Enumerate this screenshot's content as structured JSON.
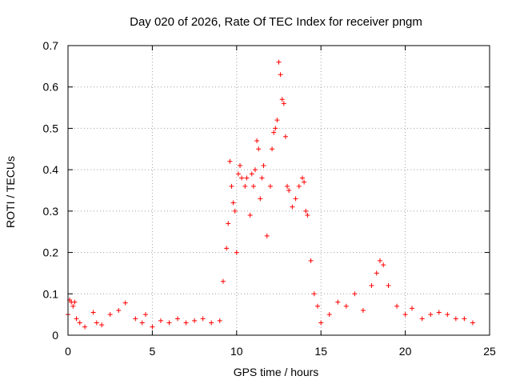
{
  "chart_data": {
    "type": "scatter",
    "title": "Day 020 of 2026, Rate Of TEC Index for receiver pngm",
    "xlabel": "GPS time / hours",
    "ylabel": "ROTI / TECUs",
    "xlim": [
      0,
      25
    ],
    "ylim": [
      0,
      0.7
    ],
    "xticks": [
      "0",
      "5",
      "10",
      "15",
      "20",
      "25"
    ],
    "yticks": [
      "0",
      "0.1",
      "0.2",
      "0.3",
      "0.4",
      "0.5",
      "0.6",
      "0.7"
    ],
    "grid": true,
    "marker": "+",
    "color": "#ff0000",
    "series": [
      {
        "x": [
          0.0,
          0.1,
          0.2,
          0.3,
          0.4,
          0.5,
          0.7,
          1.0,
          1.5,
          1.7,
          2.0,
          2.5,
          3.0,
          3.4,
          4.0,
          4.4,
          4.6,
          5.0,
          5.5,
          6.0,
          6.5,
          7.0,
          7.5,
          8.0,
          8.5,
          9.0,
          9.2,
          9.4,
          9.5,
          9.6,
          9.7,
          9.8,
          9.9,
          10.0,
          10.1,
          10.2,
          10.3,
          10.5,
          10.6,
          10.8,
          10.9,
          11.0,
          11.1,
          11.2,
          11.3,
          11.4,
          11.5,
          11.6,
          11.8,
          12.0,
          12.1,
          12.2,
          12.3,
          12.4,
          12.5,
          12.6,
          12.7,
          12.8,
          12.9,
          13.0,
          13.1,
          13.3,
          13.5,
          13.7,
          13.9,
          14.0,
          14.1,
          14.2,
          14.4,
          14.6,
          14.8,
          15.0,
          15.5,
          16.0,
          16.5,
          17.0,
          17.5,
          18.0,
          18.3,
          18.5,
          18.7,
          19.0,
          19.5,
          20.0,
          20.4,
          21.0,
          21.5,
          22.0,
          22.5,
          23.0,
          23.5,
          24.0
        ],
        "y": [
          0.05,
          0.085,
          0.08,
          0.07,
          0.08,
          0.04,
          0.03,
          0.02,
          0.055,
          0.03,
          0.025,
          0.05,
          0.06,
          0.078,
          0.04,
          0.03,
          0.05,
          0.02,
          0.035,
          0.03,
          0.04,
          0.03,
          0.035,
          0.04,
          0.03,
          0.035,
          0.13,
          0.21,
          0.27,
          0.42,
          0.36,
          0.32,
          0.3,
          0.2,
          0.39,
          0.41,
          0.38,
          0.36,
          0.38,
          0.29,
          0.39,
          0.36,
          0.4,
          0.47,
          0.45,
          0.33,
          0.38,
          0.41,
          0.24,
          0.36,
          0.45,
          0.49,
          0.5,
          0.52,
          0.66,
          0.63,
          0.57,
          0.56,
          0.48,
          0.36,
          0.35,
          0.31,
          0.33,
          0.36,
          0.38,
          0.37,
          0.3,
          0.29,
          0.18,
          0.1,
          0.07,
          0.03,
          0.05,
          0.08,
          0.07,
          0.1,
          0.06,
          0.12,
          0.15,
          0.18,
          0.17,
          0.12,
          0.07,
          0.05,
          0.065,
          0.04,
          0.05,
          0.055,
          0.05,
          0.04,
          0.04,
          0.03
        ]
      }
    ]
  }
}
